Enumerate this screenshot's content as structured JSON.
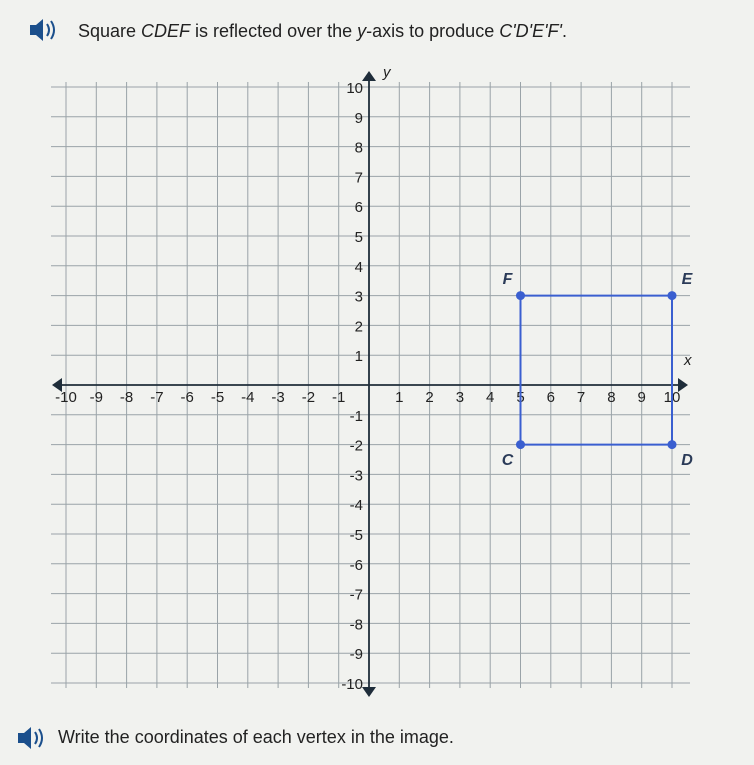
{
  "question": {
    "segments": [
      {
        "text": "Square ",
        "italic": false
      },
      {
        "text": "CDEF",
        "italic": true
      },
      {
        "text": " is reflected over the ",
        "italic": false
      },
      {
        "text": "y",
        "italic": true
      },
      {
        "text": "-axis to produce ",
        "italic": false
      },
      {
        "text": "C'D'E'F'",
        "italic": true
      },
      {
        "text": ".",
        "italic": false
      }
    ]
  },
  "graph": {
    "xlim": [
      -10,
      10
    ],
    "ylim": [
      -10,
      10
    ],
    "xticks": [
      -10,
      -9,
      -8,
      -7,
      -6,
      -5,
      -4,
      -3,
      -2,
      -1,
      1,
      2,
      3,
      4,
      5,
      6,
      7,
      8,
      9,
      10
    ],
    "yticks": [
      -10,
      -9,
      -8,
      -7,
      -6,
      -5,
      -4,
      -3,
      -2,
      -1,
      1,
      2,
      3,
      4,
      5,
      6,
      7,
      8,
      9,
      10
    ],
    "x_label": "x",
    "y_label": "y",
    "color": "#3a5fd0",
    "vertices": [
      {
        "label": "C",
        "x": 5,
        "y": -2
      },
      {
        "label": "D",
        "x": 10,
        "y": -2
      },
      {
        "label": "E",
        "x": 10,
        "y": 3
      },
      {
        "label": "F",
        "x": 5,
        "y": 3
      }
    ]
  },
  "prompt": "Write the coordinates of each vertex in the image."
}
